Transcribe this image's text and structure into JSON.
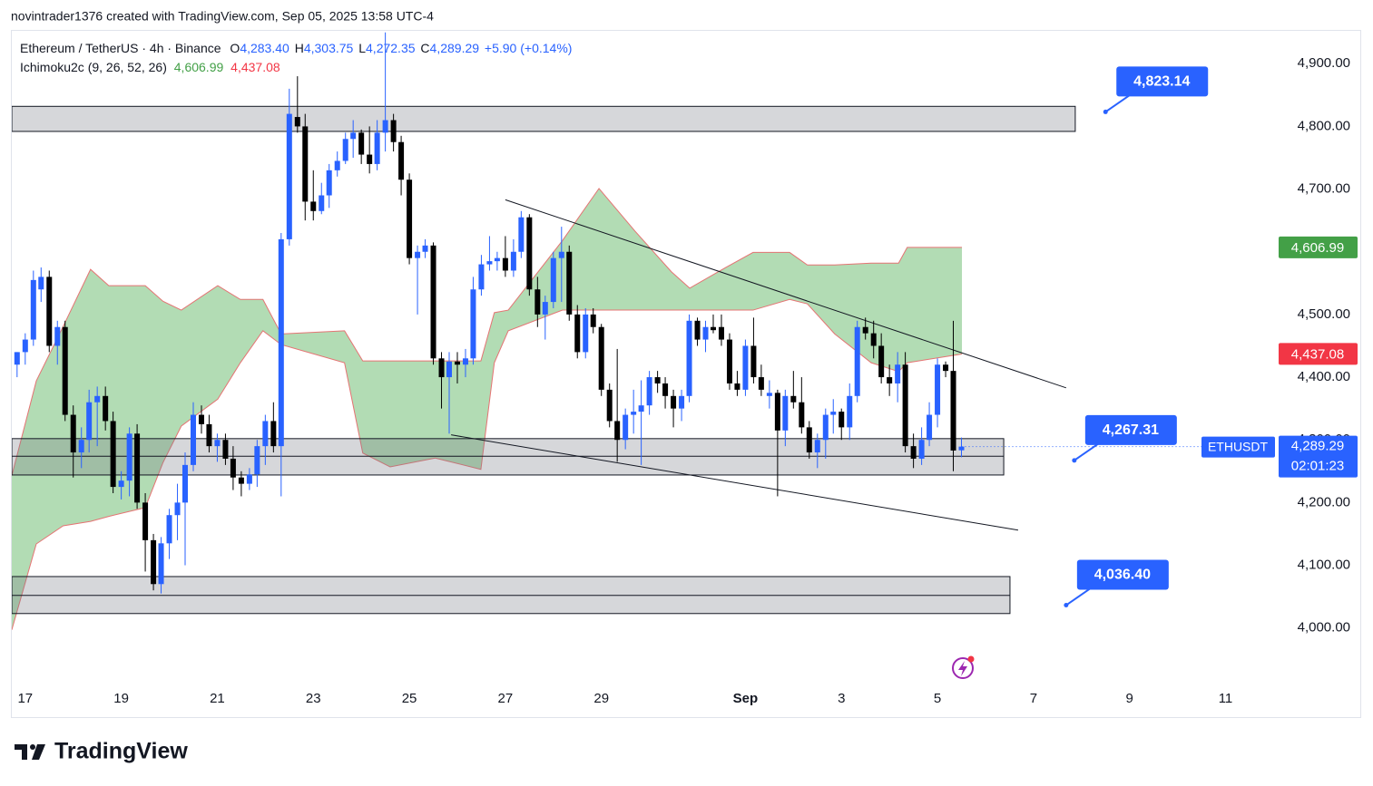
{
  "chart_data": {
    "type": "candlestick",
    "header": "novintrader1376 created with TradingView.com, Sep 05, 2025 13:58 UTC-4",
    "symbol": "Ethereum / TetherUS · 4h · Binance",
    "ohlc_legend": [
      {
        "key": "O",
        "value": "4,283.40"
      },
      {
        "key": "H",
        "value": "4,303.75"
      },
      {
        "key": "L",
        "value": "4,272.35"
      },
      {
        "key": "C",
        "value": "4,289.29"
      }
    ],
    "change": "+5.90 (+0.14%)",
    "indicator": "Ichimoku2c (9, 26, 52, 26)",
    "up_color": "#2962ff",
    "down_color": "#000000",
    "x": [
      -0.17,
      0,
      0.17,
      0.33,
      0.5,
      0.67,
      0.83,
      1,
      1.17,
      1.33,
      1.5,
      1.67,
      1.83,
      2,
      2.17,
      2.33,
      2.5,
      2.67,
      2.83,
      3,
      3.17,
      3.33,
      3.5,
      3.67,
      3.83,
      4,
      4.17,
      4.33,
      4.5,
      4.67,
      4.83,
      5,
      5.17,
      5.33,
      5.5,
      5.67,
      5.83,
      6,
      6.17,
      6.33,
      6.5,
      6.67,
      6.83,
      7,
      7.17,
      7.33,
      7.5,
      7.67,
      7.83,
      8,
      8.17,
      8.33,
      8.5,
      8.67,
      8.83,
      9,
      9.17,
      9.33,
      9.5,
      9.67,
      9.83,
      10,
      10.17,
      10.33,
      10.5,
      10.67,
      10.83,
      11,
      11.17,
      11.33,
      11.5,
      11.67,
      11.83,
      12,
      12.17,
      12.33,
      12.5,
      12.67,
      12.83,
      13,
      13.17,
      13.33,
      13.5,
      13.67,
      13.83,
      14,
      14.17,
      14.33,
      14.5,
      14.67,
      14.83,
      15,
      15.17,
      15.33,
      15.5,
      15.67,
      15.83,
      16,
      16.17,
      16.33,
      16.5,
      16.67,
      16.83,
      17,
      17.17,
      17.33,
      17.5,
      17.67,
      17.83,
      18,
      18.17,
      18.33,
      18.5,
      18.67,
      18.83,
      19,
      19.17,
      19.33,
      19.5
    ],
    "ohlc": [
      [
        4420,
        4440,
        4400,
        4440
      ],
      [
        4440,
        4470,
        4420,
        4460
      ],
      [
        4460,
        4570,
        4450,
        4555
      ],
      [
        4540,
        4575,
        4520,
        4560
      ],
      [
        4560,
        4570,
        4440,
        4450
      ],
      [
        4450,
        4490,
        4420,
        4480
      ],
      [
        4480,
        4490,
        4330,
        4340
      ],
      [
        4340,
        4355,
        4240,
        4280
      ],
      [
        4280,
        4320,
        4255,
        4300
      ],
      [
        4300,
        4380,
        4280,
        4360
      ],
      [
        4360,
        4385,
        4290,
        4370
      ],
      [
        4370,
        4385,
        4315,
        4330
      ],
      [
        4330,
        4345,
        4215,
        4225
      ],
      [
        4225,
        4250,
        4205,
        4235
      ],
      [
        4235,
        4320,
        4210,
        4310
      ],
      [
        4310,
        4325,
        4190,
        4200
      ],
      [
        4200,
        4215,
        4090,
        4140
      ],
      [
        4140,
        4150,
        4060,
        4070
      ],
      [
        4070,
        4145,
        4055,
        4135
      ],
      [
        4135,
        4190,
        4110,
        4180
      ],
      [
        4180,
        4230,
        4140,
        4200
      ],
      [
        4200,
        4280,
        4100,
        4260
      ],
      [
        4260,
        4360,
        4250,
        4340
      ],
      [
        4340,
        4355,
        4310,
        4325
      ],
      [
        4325,
        4340,
        4280,
        4290
      ],
      [
        4290,
        4310,
        4265,
        4300
      ],
      [
        4300,
        4310,
        4260,
        4270
      ],
      [
        4270,
        4290,
        4220,
        4240
      ],
      [
        4240,
        4250,
        4210,
        4230
      ],
      [
        4230,
        4255,
        4220,
        4245
      ],
      [
        4245,
        4300,
        4225,
        4290
      ],
      [
        4290,
        4340,
        4260,
        4330
      ],
      [
        4330,
        4360,
        4280,
        4290
      ],
      [
        4290,
        4630,
        4210,
        4620
      ],
      [
        4620,
        4860,
        4610,
        4820
      ],
      [
        4815,
        4880,
        4790,
        4800
      ],
      [
        4800,
        4820,
        4650,
        4680
      ],
      [
        4680,
        4730,
        4650,
        4665
      ],
      [
        4665,
        4710,
        4660,
        4690
      ],
      [
        4690,
        4740,
        4670,
        4730
      ],
      [
        4730,
        4760,
        4720,
        4745
      ],
      [
        4745,
        4790,
        4740,
        4780
      ],
      [
        4780,
        4810,
        4750,
        4790
      ],
      [
        4790,
        4795,
        4740,
        4755
      ],
      [
        4755,
        4800,
        4725,
        4740
      ],
      [
        4740,
        4810,
        4730,
        4790
      ],
      [
        4790,
        4950,
        4760,
        4810
      ],
      [
        4810,
        4820,
        4760,
        4775
      ],
      [
        4775,
        4785,
        4690,
        4715
      ],
      [
        4715,
        4725,
        4580,
        4590
      ],
      [
        4590,
        4610,
        4500,
        4600
      ],
      [
        4600,
        4620,
        4590,
        4610
      ],
      [
        4610,
        4615,
        4420,
        4430
      ],
      [
        4430,
        4440,
        4350,
        4400
      ],
      [
        4400,
        4440,
        4310,
        4425
      ],
      [
        4425,
        4440,
        4390,
        4420
      ],
      [
        4420,
        4445,
        4400,
        4430
      ],
      [
        4430,
        4560,
        4420,
        4540
      ],
      [
        4540,
        4595,
        4530,
        4580
      ],
      [
        4580,
        4625,
        4570,
        4585
      ],
      [
        4585,
        4600,
        4570,
        4590
      ],
      [
        4590,
        4625,
        4560,
        4570
      ],
      [
        4570,
        4620,
        4560,
        4600
      ],
      [
        4600,
        4665,
        4590,
        4655
      ],
      [
        4655,
        4660,
        4530,
        4540
      ],
      [
        4540,
        4560,
        4480,
        4500
      ],
      [
        4500,
        4530,
        4460,
        4520
      ],
      [
        4520,
        4600,
        4510,
        4590
      ],
      [
        4590,
        4640,
        4520,
        4600
      ],
      [
        4600,
        4610,
        4490,
        4500
      ],
      [
        4500,
        4515,
        4430,
        4440
      ],
      [
        4440,
        4510,
        4430,
        4500
      ],
      [
        4500,
        4510,
        4470,
        4480
      ],
      [
        4480,
        4485,
        4370,
        4380
      ],
      [
        4380,
        4390,
        4320,
        4330
      ],
      [
        4330,
        4445,
        4265,
        4300
      ],
      [
        4300,
        4350,
        4285,
        4340
      ],
      [
        4340,
        4380,
        4310,
        4345
      ],
      [
        4345,
        4395,
        4260,
        4355
      ],
      [
        4355,
        4410,
        4340,
        4400
      ],
      [
        4400,
        4410,
        4375,
        4390
      ],
      [
        4390,
        4400,
        4350,
        4370
      ],
      [
        4370,
        4380,
        4320,
        4350
      ],
      [
        4350,
        4380,
        4330,
        4370
      ],
      [
        4370,
        4500,
        4360,
        4490
      ],
      [
        4490,
        4495,
        4450,
        4460
      ],
      [
        4460,
        4490,
        4440,
        4480
      ],
      [
        4480,
        4500,
        4470,
        4475
      ],
      [
        4480,
        4500,
        4450,
        4460
      ],
      [
        4460,
        4470,
        4380,
        4390
      ],
      [
        4390,
        4410,
        4370,
        4380
      ],
      [
        4380,
        4460,
        4370,
        4450
      ],
      [
        4450,
        4495,
        4390,
        4400
      ],
      [
        4400,
        4420,
        4370,
        4380
      ],
      [
        4370,
        4395,
        4350,
        4375
      ],
      [
        4375,
        4380,
        4210,
        4315
      ],
      [
        4315,
        4380,
        4290,
        4370
      ],
      [
        4370,
        4410,
        4350,
        4360
      ],
      [
        4360,
        4400,
        4310,
        4320
      ],
      [
        4320,
        4330,
        4270,
        4280
      ],
      [
        4280,
        4310,
        4255,
        4300
      ],
      [
        4300,
        4350,
        4270,
        4340
      ],
      [
        4340,
        4365,
        4310,
        4345
      ],
      [
        4345,
        4350,
        4300,
        4320
      ],
      [
        4320,
        4390,
        4300,
        4370
      ],
      [
        4370,
        4490,
        4360,
        4480
      ],
      [
        4480,
        4495,
        4460,
        4470
      ],
      [
        4470,
        4490,
        4430,
        4450
      ],
      [
        4450,
        4470,
        4390,
        4400
      ],
      [
        4400,
        4420,
        4370,
        4390
      ],
      [
        4390,
        4440,
        4360,
        4420
      ],
      [
        4420,
        4440,
        4280,
        4290
      ],
      [
        4290,
        4310,
        4255,
        4270
      ],
      [
        4270,
        4320,
        4260,
        4300
      ],
      [
        4300,
        4360,
        4290,
        4340
      ],
      [
        4340,
        4430,
        4320,
        4420
      ],
      [
        4420,
        4425,
        4400,
        4410
      ],
      [
        4410,
        4490,
        4250,
        4283
      ],
      [
        4283.4,
        4303.75,
        4272.35,
        4289.29
      ]
    ],
    "xlim": [
      -0.28,
      26.03
    ],
    "xticks": [
      {
        "value": 0,
        "label": "17"
      },
      {
        "value": 2,
        "label": "19"
      },
      {
        "value": 4,
        "label": "21"
      },
      {
        "value": 6,
        "label": "23"
      },
      {
        "value": 8,
        "label": "25"
      },
      {
        "value": 10,
        "label": "27"
      },
      {
        "value": 12,
        "label": "29"
      },
      {
        "value": 15,
        "label": "Sep"
      },
      {
        "value": 17,
        "label": "3"
      },
      {
        "value": 19,
        "label": "5"
      },
      {
        "value": 21,
        "label": "7"
      },
      {
        "value": 23,
        "label": "9"
      },
      {
        "value": 25,
        "label": "11"
      }
    ],
    "ylim": [
      3907,
      4951
    ],
    "yticks": [
      {
        "value": 4000,
        "label": "4,000.00"
      },
      {
        "value": 4100,
        "label": "4,100.00"
      },
      {
        "value": 4200,
        "label": "4,200.00"
      },
      {
        "value": 4300,
        "label": "4,300.00"
      },
      {
        "value": 4400,
        "label": "4,400.00"
      },
      {
        "value": 4500,
        "label": "4,500.00"
      },
      {
        "value": 4600,
        "label": "4,600.00"
      },
      {
        "value": 4700,
        "label": "4,700.00"
      },
      {
        "value": 4800,
        "label": "4,800.00"
      },
      {
        "value": 4900,
        "label": "4,900.00"
      }
    ],
    "ichimoku": {
      "fill": "#a5d6a7",
      "edge": "#e57373",
      "x": [
        -0.28,
        0.23,
        0.79,
        1.36,
        1.74,
        2.5,
        2.87,
        3.25,
        4.01,
        4.48,
        4.95,
        5.33,
        6.65,
        7.03,
        7.6,
        8.54,
        9.49,
        9.77,
        10.06,
        11.19,
        11.95,
        12.7,
        13.46,
        13.84,
        14.59,
        15.16,
        15.92,
        16.29,
        16.86,
        17.62,
        18.19,
        18.37,
        19.51
      ],
      "upper": [
        4243,
        4394,
        4481,
        4572,
        4546,
        4546,
        4521,
        4507,
        4546,
        4524,
        4524,
        4469,
        4474,
        4426,
        4426,
        4426,
        4426,
        4503,
        4507,
        4618,
        4701,
        4633,
        4568,
        4542,
        4575,
        4599,
        4599,
        4579,
        4579,
        4582,
        4582,
        4607,
        4607
      ],
      "lower": [
        3997,
        4134,
        4163,
        4170,
        4178,
        4192,
        4264,
        4322,
        4365,
        4423,
        4474,
        4452,
        4423,
        4279,
        4257,
        4271,
        4253,
        4423,
        4474,
        4507,
        4507,
        4507,
        4507,
        4507,
        4507,
        4507,
        4524,
        4517,
        4469,
        4423,
        4409,
        4423,
        4437
      ]
    },
    "zones": [
      {
        "x": [
          -0.28,
          21.87
        ],
        "y": [
          4792,
          4832
        ]
      },
      {
        "x": [
          -0.28,
          20.38
        ],
        "y": [
          4244,
          4302
        ],
        "mid": 4274
      },
      {
        "x": [
          -0.28,
          20.51
        ],
        "y": [
          4023,
          4082
        ],
        "mid": 4052
      }
    ],
    "trendlines": [
      {
        "x": [
          10,
          21.68
        ],
        "y": [
          4683,
          4383
        ]
      },
      {
        "x": [
          8.87,
          20.68
        ],
        "y": [
          4308,
          4156
        ]
      }
    ],
    "callouts": [
      {
        "x": 22.5,
        "value": 4823.14,
        "label": "4,823.14"
      },
      {
        "x": 21.85,
        "value": 4267.31,
        "label": "4,267.31"
      },
      {
        "x": 21.68,
        "value": 4036.4,
        "label": "4,036.40"
      }
    ],
    "price_tags": [
      {
        "value": 4606.99,
        "label": "4,606.99",
        "color": "#43a047"
      },
      {
        "value": 4437.08,
        "label": "4,437.08",
        "color": "#f23645"
      },
      {
        "value": 4289.29,
        "label": "4,289.29",
        "color": "#2962ff",
        "symbol": "ETHUSDT",
        "countdown": "02:01:23"
      }
    ],
    "brand": "TradingView"
  }
}
